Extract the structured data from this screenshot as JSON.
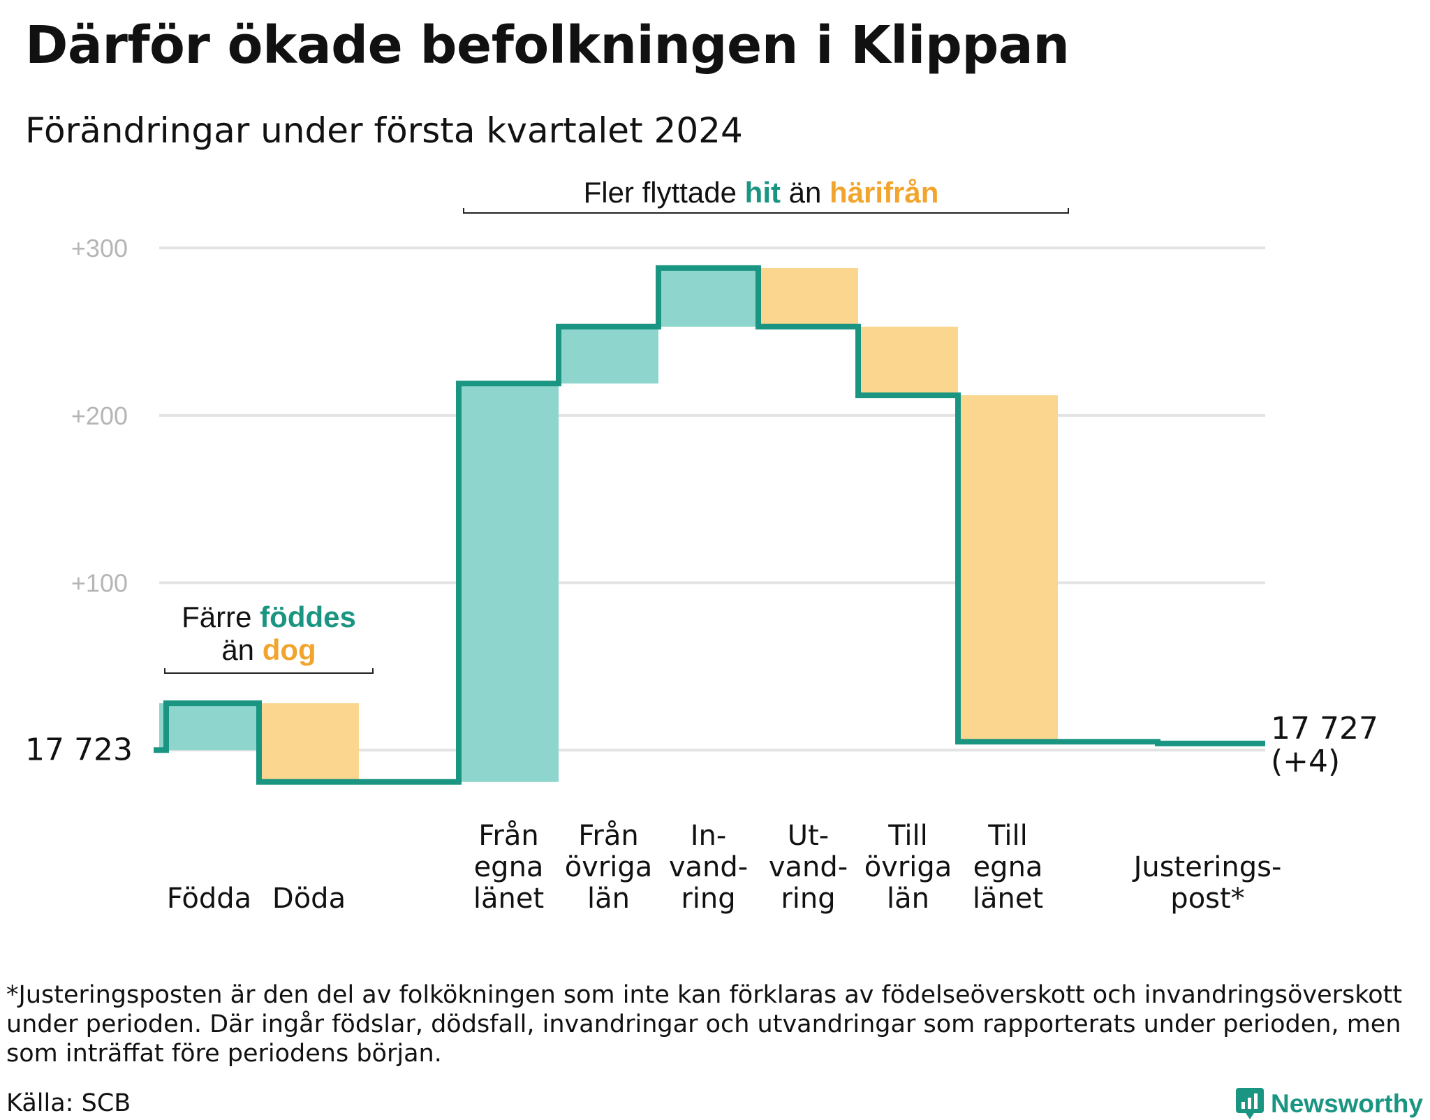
{
  "title": "Därför ökade befolkningen i Klippan",
  "subtitle": "Förändringar under första kvartalet 2024",
  "colors": {
    "gain": "#8dd5cd",
    "loss": "#fad68f",
    "line": "#1a9582",
    "grid": "#e3e3e3",
    "accent_orange": "#f2a52e",
    "accent_teal": "#1a9582"
  },
  "chart_data": {
    "type": "waterfall",
    "start_value": 17723,
    "start_label": "17  723",
    "end_value": 17727,
    "end_label": "17 727",
    "end_change_label": "(+4)",
    "ylim": [
      -22,
      318
    ],
    "yticks": [
      {
        "value": 100,
        "label": "+100"
      },
      {
        "value": 200,
        "label": "+200"
      },
      {
        "value": 300,
        "label": "+300"
      }
    ],
    "steps": [
      {
        "category": [
          "Födda"
        ],
        "change": 28
      },
      {
        "category": [
          "Döda"
        ],
        "change": -47
      },
      {
        "category": [],
        "change": 0
      },
      {
        "category": [
          "Från",
          "egna",
          "länet"
        ],
        "change": 238
      },
      {
        "category": [
          "Från",
          "övriga",
          "län"
        ],
        "change": 34
      },
      {
        "category": [
          "In-",
          "vand-",
          "ring"
        ],
        "change": 35
      },
      {
        "category": [
          "Ut-",
          "vand-",
          "ring"
        ],
        "change": -35
      },
      {
        "category": [
          "Till",
          "övriga",
          "län"
        ],
        "change": -41
      },
      {
        "category": [
          "Till",
          "egna",
          "länet"
        ],
        "change": -207
      },
      {
        "category": [],
        "change": 0
      },
      {
        "category": [
          "Justerings-",
          "post*"
        ],
        "change": -1
      }
    ],
    "annotations": {
      "births": {
        "line1_plain": "Färre",
        "line1_teal": "föddes",
        "line2_plain": "än",
        "line2_orange": "dog"
      },
      "moves": {
        "plain1": "Fler flyttade",
        "teal": "hit",
        "plain2": "än",
        "orange": "härifrån"
      }
    }
  },
  "footnote": "*Justeringsposten är den del av folkökningen som inte kan förklaras av födelseöverskott och invandringsöverskott under perioden. Där ingår födslar, dödsfall, invandringar och utvandringar som rapporterats under perioden, men som inträffat före periodens början.",
  "source": "Källa: SCB",
  "brand": "Newsworthy"
}
